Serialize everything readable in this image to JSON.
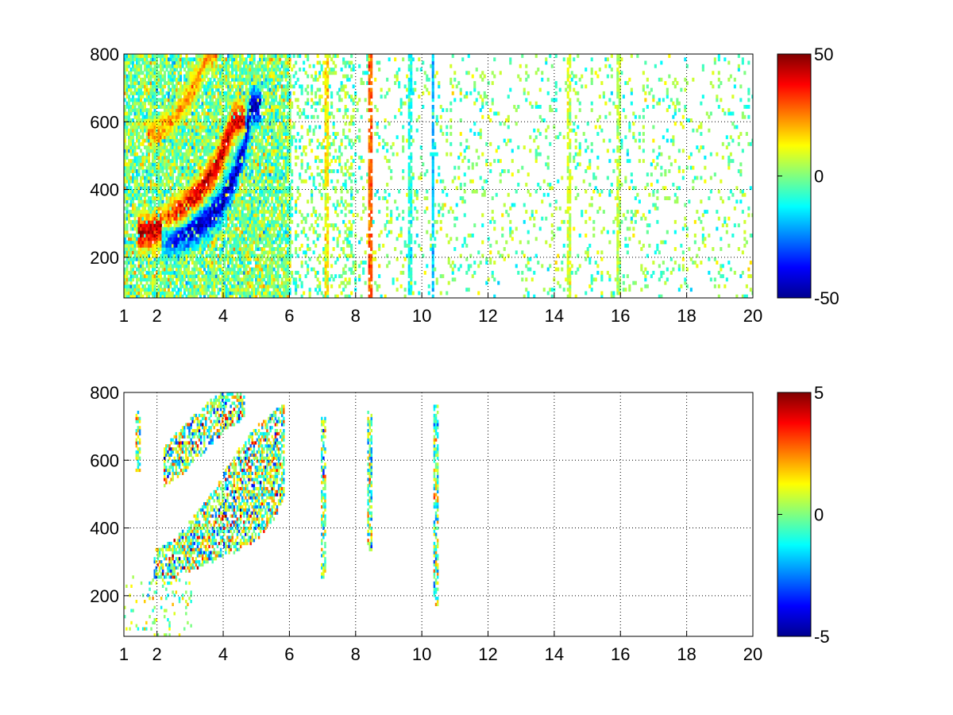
{
  "figure": {
    "background": "#ffffff",
    "colormap": "jet",
    "grid_color": "#000000"
  },
  "chart_data": [
    {
      "type": "heatmap",
      "title": "",
      "xlabel": "",
      "ylabel": "",
      "xlim": [
        1,
        20
      ],
      "ylim": [
        80,
        800
      ],
      "xticks": [
        1,
        2,
        4,
        6,
        8,
        10,
        12,
        14,
        16,
        18,
        20
      ],
      "yticks": [
        200,
        400,
        600,
        800
      ],
      "grid": true,
      "colorbar": {
        "clim": [
          -50,
          50
        ],
        "ticks": [
          50,
          0,
          -50
        ],
        "placement": "right"
      },
      "features": [
        {
          "kind": "ridge",
          "x": [
            1.7,
            2.2,
            2.7,
            3.2,
            3.7,
            4.0,
            4.3
          ],
          "y": [
            270,
            290,
            330,
            380,
            450,
            520,
            600
          ],
          "value": 42,
          "spread": 35
        },
        {
          "kind": "ridge",
          "x": [
            2.4,
            2.9,
            3.4,
            3.9,
            4.3,
            4.6,
            4.8
          ],
          "y": [
            255,
            270,
            300,
            350,
            430,
            520,
            640
          ],
          "value": -44,
          "spread": 35
        },
        {
          "kind": "ridge",
          "x": [
            2.0,
            2.4,
            2.8,
            3.2,
            3.5
          ],
          "y": [
            560,
            600,
            650,
            720,
            790
          ],
          "value": 22,
          "spread": 28
        },
        {
          "kind": "column",
          "x": 8.4,
          "value": 28
        },
        {
          "kind": "column",
          "x": 10.3,
          "value": -18
        },
        {
          "kind": "column",
          "x": 9.6,
          "value": -10
        },
        {
          "kind": "column",
          "x": 14.4,
          "value": 8
        },
        {
          "kind": "column",
          "x": 15.9,
          "value": 6
        },
        {
          "kind": "column",
          "x": 7.1,
          "value": 14
        }
      ]
    },
    {
      "type": "heatmap",
      "title": "",
      "xlabel": "",
      "ylabel": "",
      "xlim": [
        1,
        20
      ],
      "ylim": [
        80,
        800
      ],
      "xticks": [
        1,
        2,
        4,
        6,
        8,
        10,
        12,
        14,
        16,
        18,
        20
      ],
      "yticks": [
        200,
        400,
        600,
        800
      ],
      "grid": true,
      "colorbar": {
        "clim": [
          -5,
          5
        ],
        "ticks": [
          5,
          0,
          -5
        ],
        "placement": "right"
      },
      "features": [
        {
          "kind": "band",
          "x": [
            1.9,
            2.5,
            3.0,
            3.5,
            4.0,
            4.5,
            5.0,
            5.5,
            5.8
          ],
          "ylo": [
            240,
            250,
            270,
            290,
            310,
            330,
            360,
            420,
            480
          ],
          "yhi": [
            330,
            360,
            420,
            480,
            560,
            640,
            700,
            740,
            760
          ]
        },
        {
          "kind": "band",
          "x": [
            2.2,
            2.8,
            3.4,
            4.0,
            4.6
          ],
          "ylo": [
            520,
            560,
            620,
            680,
            720
          ],
          "yhi": [
            640,
            700,
            760,
            800,
            800
          ]
        },
        {
          "kind": "column",
          "x": 7.0,
          "ylo": 250,
          "yhi": 720
        },
        {
          "kind": "column",
          "x": 8.4,
          "ylo": 330,
          "yhi": 740
        },
        {
          "kind": "column",
          "x": 10.4,
          "ylo": 170,
          "yhi": 760
        },
        {
          "kind": "column",
          "x": 1.4,
          "ylo": 560,
          "yhi": 740
        }
      ]
    }
  ]
}
